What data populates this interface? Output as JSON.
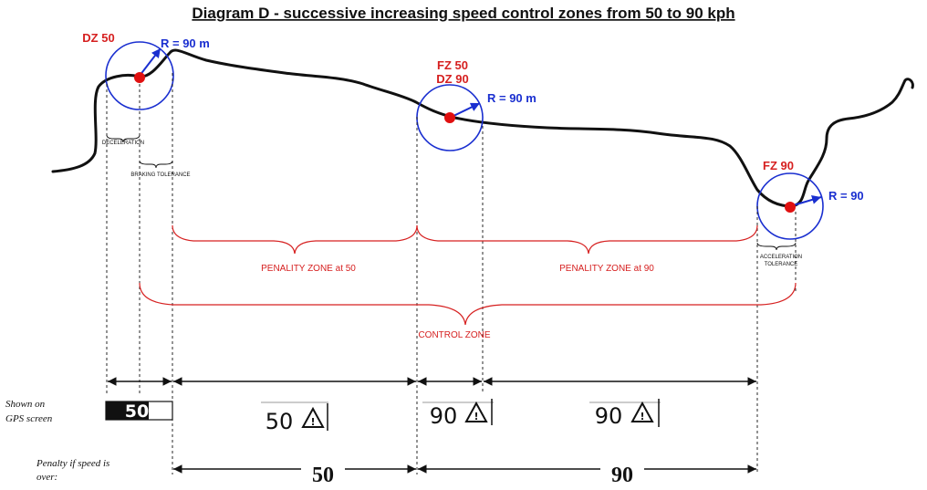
{
  "title": "Diagram D - successive increasing speed control zones from 50 to 90 kph",
  "points": {
    "dz50": {
      "label": "DZ 50",
      "radius_label": "R = 90 m"
    },
    "fz50_dz90": {
      "label_line1": "FZ 50",
      "label_line2": "DZ 90",
      "radius_label": "R = 90 m"
    },
    "fz90": {
      "label": "FZ 90",
      "radius_label": "R = 90"
    }
  },
  "segments": {
    "deceleration": "DECELERATION",
    "braking_tolerance": "BRAKING  TOLERANCE",
    "acceleration_tolerance_line1": "ACCELERATION",
    "acceleration_tolerance_line2": "TOLERANCE"
  },
  "zones": {
    "penalty_50": "PENALITY ZONE at 50",
    "penalty_90": "PENALITY ZONE at 90",
    "control": "CONTROL  ZONE"
  },
  "gps": {
    "label_line1": "Shown on",
    "label_line2": "GPS screen",
    "signs": [
      "50",
      "50",
      "90",
      "90"
    ]
  },
  "penalty": {
    "label_line1": "Penalty if speed is",
    "label_line2": "over:",
    "values": [
      "50",
      "90"
    ]
  },
  "colors": {
    "route": "#111111",
    "circle": "#1a2fd0",
    "point": "#e01010",
    "zone": "#d62020"
  }
}
